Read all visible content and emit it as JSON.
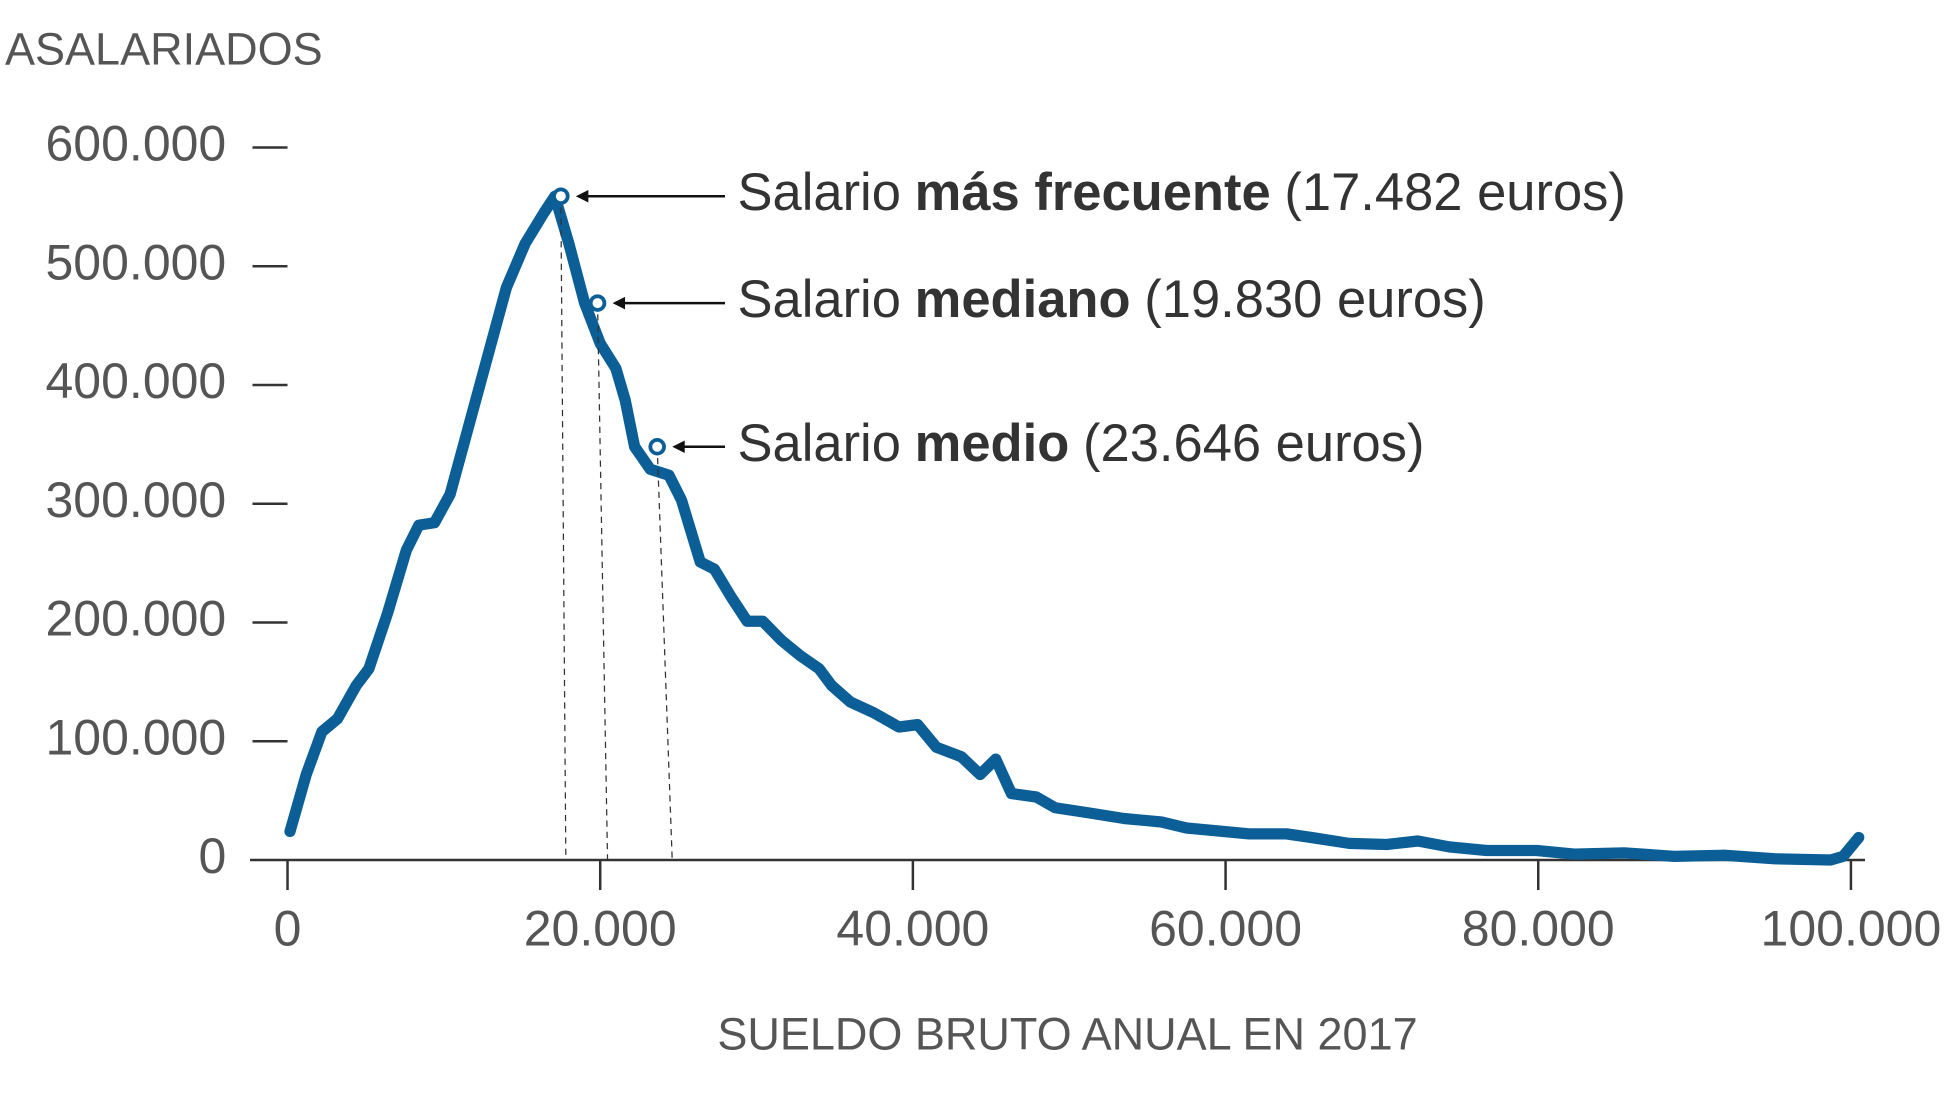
{
  "chart_data": {
    "type": "line",
    "y_label": "ASALARIADOS",
    "x_label": "SUELDO BRUTO ANUAL EN 2017",
    "xlim": [
      -2400,
      100900
    ],
    "ylim": [
      0,
      600000
    ],
    "xticks": [
      0,
      {
        "value": 20000,
        "label": "20.000"
      },
      {
        "value": 40000,
        "label": "40.000"
      },
      {
        "value": 60000,
        "label": "60.000"
      },
      {
        "value": 80000,
        "label": "80.000"
      },
      {
        "value": 100000,
        "label": "100.000"
      }
    ],
    "yticks": [
      0,
      {
        "value": 100000,
        "label": "100.000"
      },
      {
        "value": 200000,
        "label": "200.000"
      },
      {
        "value": 300000,
        "label": "300.000"
      },
      {
        "value": 400000,
        "label": "400.000"
      },
      {
        "value": 500000,
        "label": "500.000"
      },
      {
        "value": 600000,
        "label": "600.000"
      }
    ],
    "series": [
      {
        "color": "#0b5f96",
        "x": [
          160,
          1200,
          2200,
          3200,
          4400,
          5200,
          6400,
          7600,
          8400,
          9400,
          10400,
          11600,
          12800,
          14000,
          15200,
          16400,
          17100,
          18000,
          19000,
          20000,
          21000,
          21600,
          22200,
          23200,
          24400,
          25200,
          26400,
          27300,
          28400,
          29400,
          30400,
          31600,
          32800,
          34000,
          34800,
          36000,
          37500,
          39100,
          40300,
          41500,
          43100,
          44300,
          45300,
          46300,
          47900,
          49100,
          51100,
          53500,
          55900,
          57500,
          59900,
          61500,
          63900,
          65500,
          67900,
          70300,
          72300,
          74300,
          76700,
          79900,
          82300,
          85500,
          88700,
          91900,
          95100,
          98700,
          99500,
          100500
        ],
        "values": [
          24000,
          72000,
          108000,
          119000,
          147000,
          161000,
          208000,
          261000,
          282000,
          284000,
          308000,
          366000,
          424000,
          482000,
          519000,
          545000,
          559000,
          519000,
          469000,
          435000,
          414000,
          387000,
          348000,
          329000,
          324000,
          303000,
          251000,
          245000,
          221000,
          201000,
          201000,
          185000,
          172000,
          161000,
          147000,
          133000,
          124000,
          112000,
          114000,
          95000,
          87000,
          72000,
          85000,
          56000,
          53000,
          44000,
          40000,
          35000,
          32000,
          27000,
          24000,
          22000,
          22000,
          19000,
          14000,
          13000,
          16000,
          11000,
          8000,
          8000,
          5000,
          6000,
          3000,
          4000,
          1000,
          0,
          3000,
          19000
        ]
      }
    ],
    "annotations": [
      {
        "x": 17482,
        "y": 559000,
        "prefix": "Salario",
        "bold": "más frecuente",
        "detail": "(17.482 euros)"
      },
      {
        "x": 19830,
        "y": 469000,
        "prefix": "Salario",
        "bold": "mediano",
        "detail": "(19.830 euros)"
      },
      {
        "x": 23646,
        "y": 348000,
        "prefix": "Salario",
        "bold": "medio",
        "detail": "(23.646 euros)"
      }
    ]
  }
}
